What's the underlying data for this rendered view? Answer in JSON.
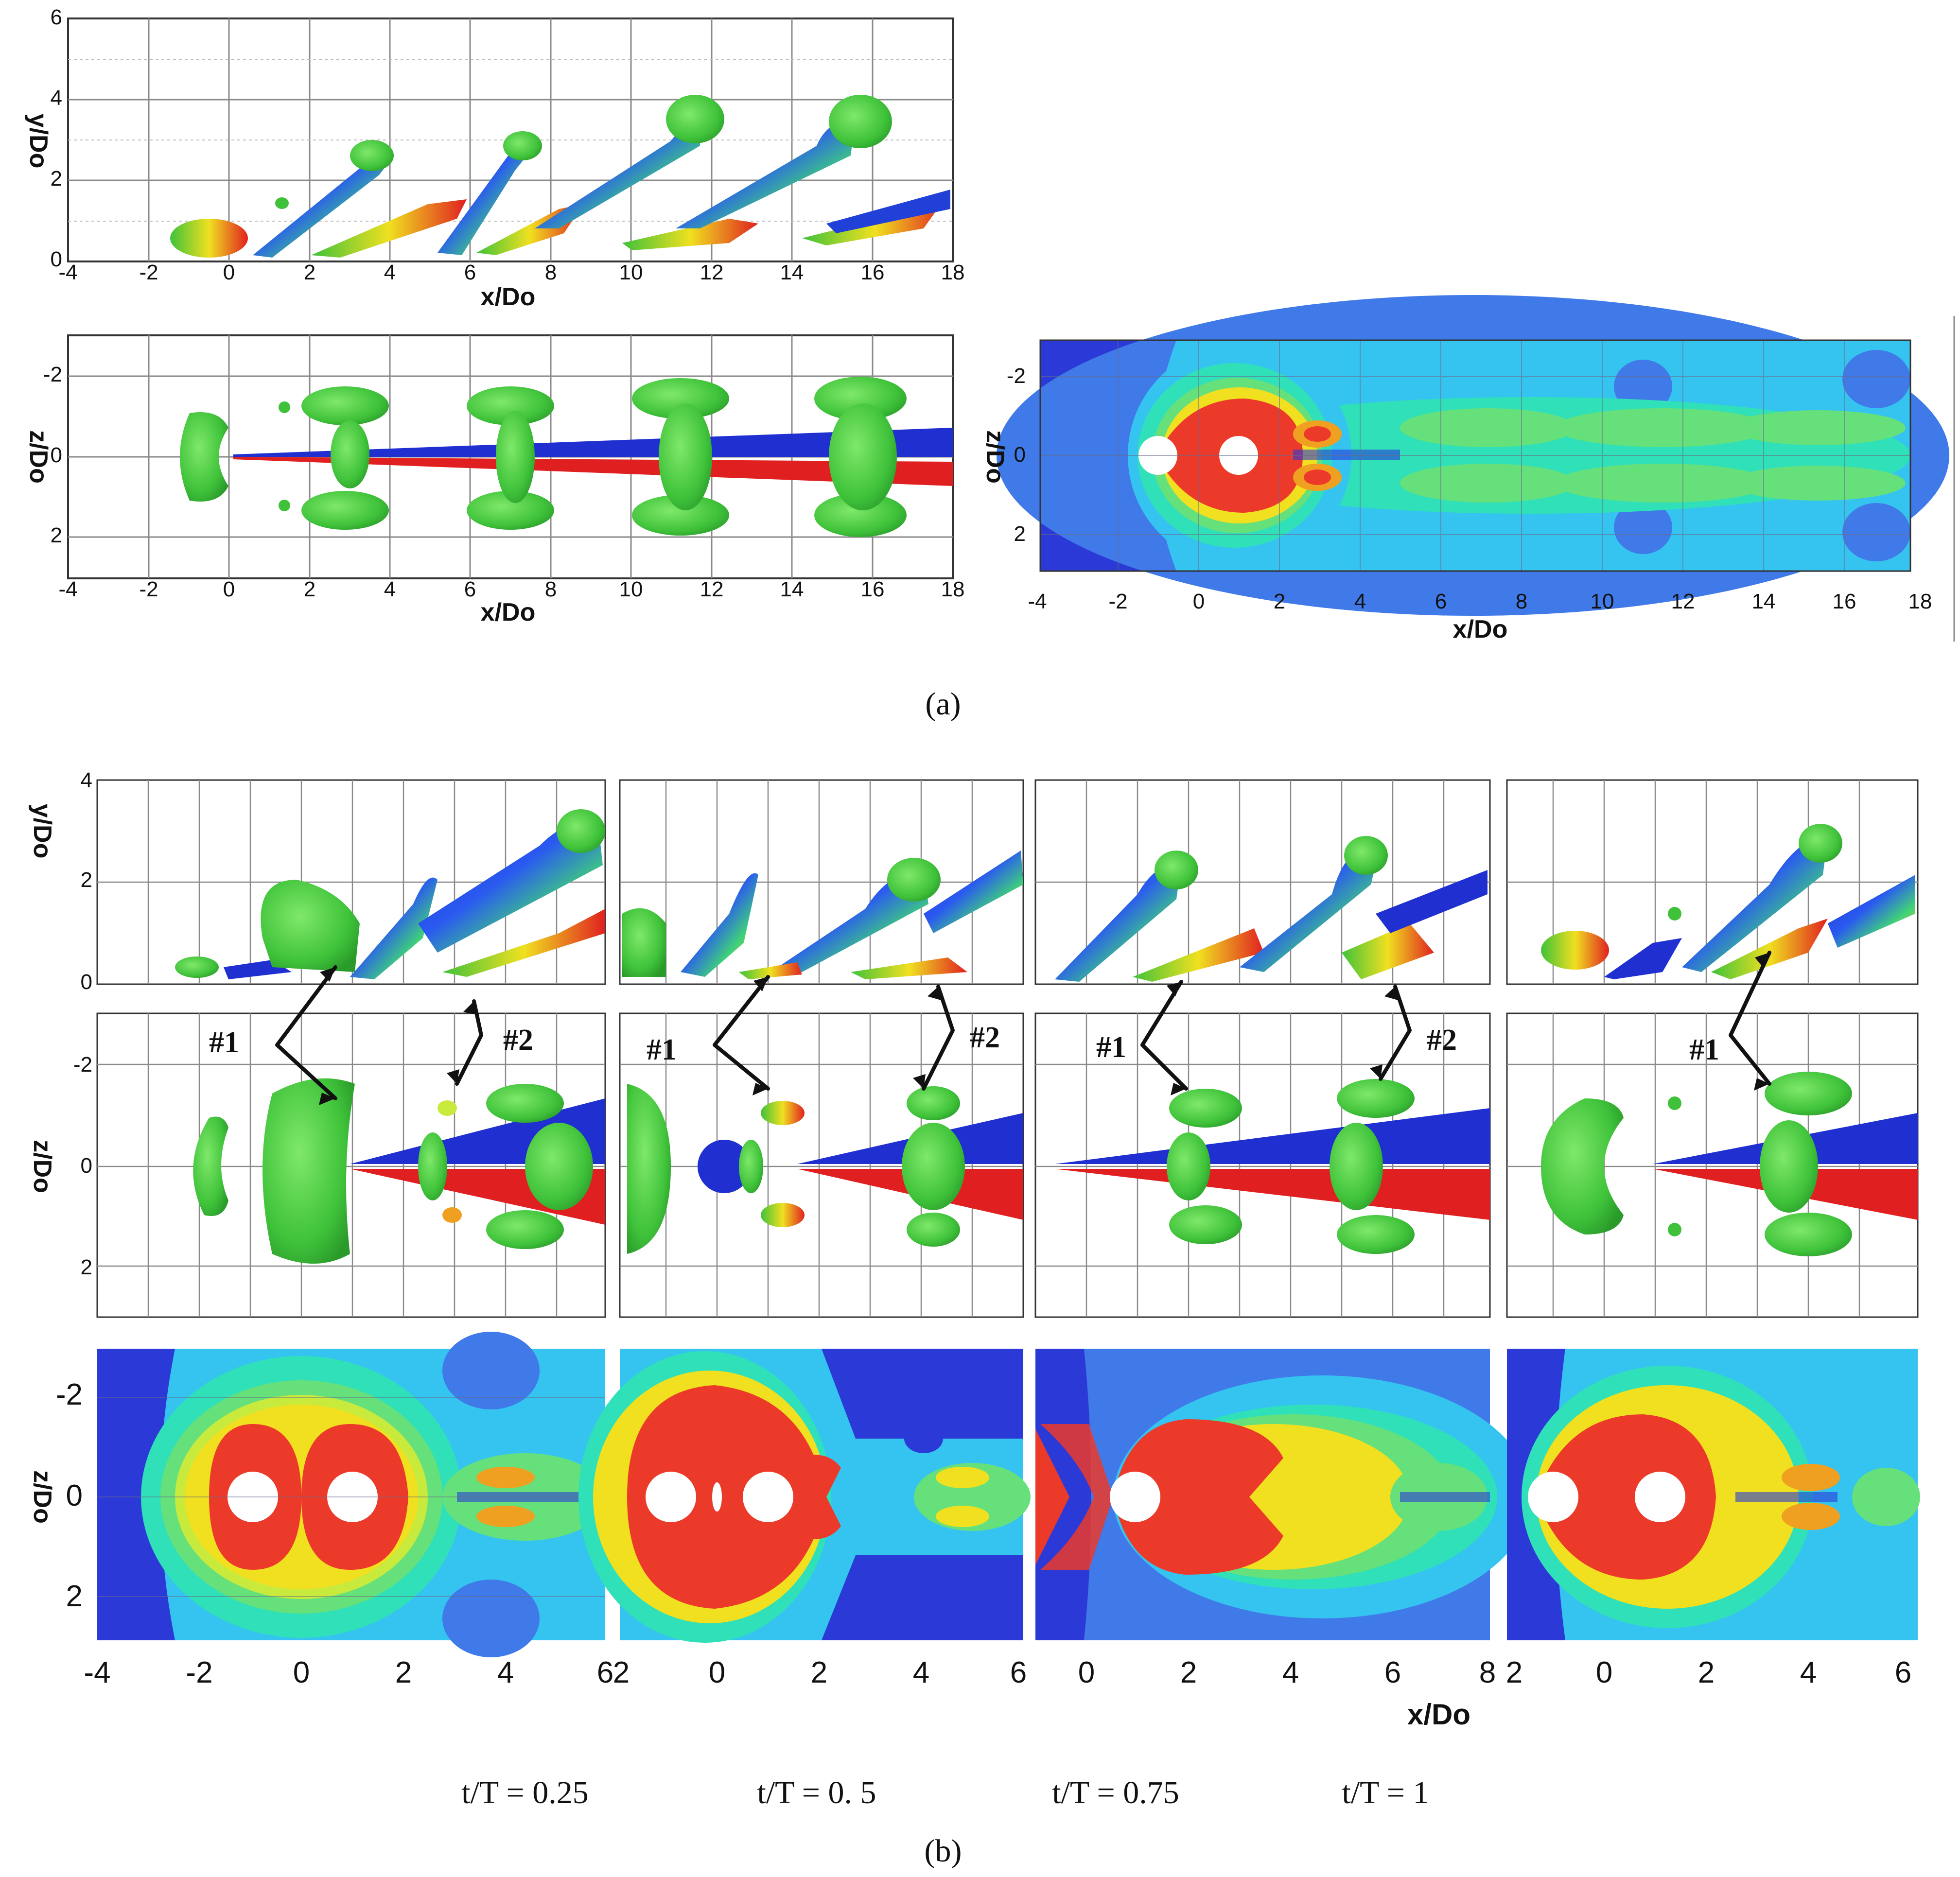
{
  "colors": {
    "contour_levels": [
      "#2b3ad6",
      "#3f7ae8",
      "#35c4f0",
      "#2fe0b8",
      "#66e07a",
      "#c8ea3c",
      "#f0e020",
      "#f0a020",
      "#ec3a2a"
    ],
    "iso_green": "#3fc23a",
    "iso_blue": "#1f2fd0",
    "iso_red": "#e02020",
    "grid": "#8a8a8a"
  },
  "axes": {
    "x_title": "x/Do",
    "y_title": "y/Do",
    "z_title": "z/Do"
  },
  "ticks": {
    "a_x": [
      "-4",
      "-2",
      "0",
      "2",
      "4",
      "6",
      "8",
      "10",
      "12",
      "14",
      "16",
      "18"
    ],
    "a_y": [
      "0",
      "2",
      "4",
      "6"
    ],
    "a_z": [
      "-2",
      "0",
      "2"
    ],
    "b_y": [
      "0",
      "2",
      "4"
    ],
    "b_z": [
      "-2",
      "0",
      "2"
    ],
    "b_x_panel1": [
      "-4",
      "-2",
      "0",
      "2",
      "4",
      "6"
    ],
    "b_x_panel2": [
      "2",
      "0",
      "2",
      "4",
      "6"
    ],
    "b_x_panel3": [
      "0",
      "2",
      "4",
      "6",
      "8"
    ],
    "b_x_panel4": [
      "2",
      "0",
      "2",
      "4",
      "6"
    ]
  },
  "annotations": {
    "vortex_1": "#1",
    "vortex_2": "#2"
  },
  "captions": {
    "part_a": "(a)",
    "part_b": "(b)"
  },
  "time_labels": [
    "t/T = 0.25",
    "t/T = 0. 5",
    "t/T = 0.75",
    "t/T = 1"
  ]
}
